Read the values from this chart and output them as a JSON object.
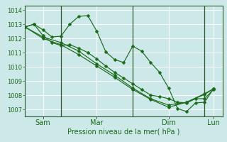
{
  "title": "",
  "xlabel": "Pression niveau de la mer( hPa )",
  "ylabel": "",
  "bg_color": "#cde8e8",
  "grid_color": "#ffffff",
  "line_color": "#1a6b1a",
  "tick_label_color": "#1a6b1a",
  "ylim": [
    1006.5,
    1014.3
  ],
  "yticks": [
    1007,
    1008,
    1009,
    1010,
    1011,
    1012,
    1013,
    1014
  ],
  "xlim": [
    0,
    132
  ],
  "vlines": [
    24,
    72,
    120
  ],
  "xtick_positions": [
    12,
    48,
    96,
    126
  ],
  "xtick_labels": [
    "Sam",
    "Mar",
    "Dim",
    "Lun"
  ],
  "line1": [
    [
      0,
      1012.8
    ],
    [
      6,
      1013.0
    ],
    [
      12,
      1012.6
    ],
    [
      18,
      1012.1
    ],
    [
      24,
      1012.15
    ],
    [
      30,
      1013.0
    ],
    [
      36,
      1013.55
    ],
    [
      42,
      1013.6
    ],
    [
      48,
      1012.5
    ],
    [
      54,
      1011.05
    ],
    [
      60,
      1010.5
    ],
    [
      66,
      1010.3
    ],
    [
      72,
      1011.45
    ],
    [
      78,
      1011.1
    ],
    [
      84,
      1010.3
    ],
    [
      90,
      1009.6
    ],
    [
      96,
      1008.5
    ],
    [
      102,
      1007.05
    ],
    [
      108,
      1006.85
    ],
    [
      114,
      1007.45
    ],
    [
      120,
      1007.5
    ],
    [
      126,
      1008.45
    ]
  ],
  "line2": [
    [
      0,
      1012.8
    ],
    [
      6,
      1013.0
    ],
    [
      12,
      1012.2
    ],
    [
      18,
      1011.7
    ],
    [
      24,
      1011.5
    ],
    [
      30,
      1011.55
    ],
    [
      36,
      1011.3
    ],
    [
      42,
      1011.0
    ],
    [
      48,
      1010.55
    ],
    [
      54,
      1010.05
    ],
    [
      60,
      1009.6
    ],
    [
      66,
      1009.2
    ],
    [
      72,
      1008.8
    ],
    [
      78,
      1008.4
    ],
    [
      84,
      1008.0
    ],
    [
      90,
      1007.9
    ],
    [
      96,
      1007.75
    ],
    [
      102,
      1007.5
    ],
    [
      108,
      1007.45
    ],
    [
      114,
      1007.75
    ],
    [
      120,
      1007.75
    ],
    [
      126,
      1008.4
    ]
  ],
  "line3": [
    [
      0,
      1012.8
    ],
    [
      12,
      1012.1
    ],
    [
      24,
      1011.7
    ],
    [
      36,
      1011.1
    ],
    [
      48,
      1010.2
    ],
    [
      60,
      1009.4
    ],
    [
      72,
      1008.5
    ],
    [
      84,
      1007.75
    ],
    [
      96,
      1007.3
    ],
    [
      108,
      1007.5
    ],
    [
      120,
      1008.1
    ],
    [
      126,
      1008.45
    ]
  ],
  "line4": [
    [
      0,
      1012.8
    ],
    [
      12,
      1012.0
    ],
    [
      24,
      1011.55
    ],
    [
      36,
      1010.85
    ],
    [
      48,
      1010.05
    ],
    [
      60,
      1009.25
    ],
    [
      72,
      1008.4
    ],
    [
      84,
      1007.7
    ],
    [
      96,
      1007.15
    ],
    [
      108,
      1007.5
    ],
    [
      120,
      1008.05
    ],
    [
      126,
      1008.45
    ]
  ]
}
